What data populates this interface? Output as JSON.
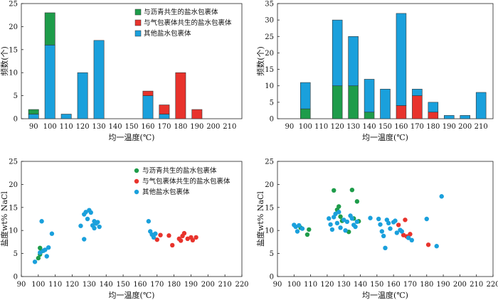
{
  "legend_labels": {
    "bitumen": "与沥青共生的盐水包裹体",
    "gas": "与气包裹体共生的盐水包裹体",
    "other": "其他盐水包裹体"
  },
  "colors": {
    "bitumen": "#1e9c4a",
    "gas": "#e8332c",
    "other": "#1aa0dc"
  },
  "chart_data": [
    {
      "type": "bar",
      "stacked": true,
      "xlabel": "均一温度(℃)",
      "ylabel": "频数(个)",
      "ylim": [
        0,
        25
      ],
      "yticks": [
        0,
        5,
        10,
        15,
        20,
        25
      ],
      "categories": [
        90,
        100,
        110,
        120,
        130,
        140,
        150,
        160,
        170,
        180,
        190,
        200,
        210
      ],
      "series": [
        {
          "name": "其他盐水包裹体",
          "key": "other",
          "values": [
            1,
            16,
            1,
            10,
            17,
            0,
            0,
            5,
            1,
            0,
            0,
            0,
            0
          ]
        },
        {
          "name": "与沥青共生的盐水包裹体",
          "key": "bitumen",
          "values": [
            1,
            7,
            0,
            0,
            0,
            0,
            0,
            0,
            0,
            0,
            0,
            0,
            0
          ]
        },
        {
          "name": "与气包裹体共生的盐水包裹体",
          "key": "gas",
          "values": [
            0,
            0,
            0,
            0,
            0,
            0,
            0,
            1,
            2,
            10,
            2,
            0,
            0
          ]
        }
      ],
      "legend": "top-right"
    },
    {
      "type": "bar",
      "stacked": true,
      "xlabel": "均一温度(℃)",
      "ylabel": "频数(个)",
      "ylim": [
        0,
        35
      ],
      "yticks": [
        0,
        5,
        10,
        15,
        20,
        25,
        30,
        35
      ],
      "categories": [
        90,
        100,
        110,
        120,
        130,
        140,
        150,
        160,
        170,
        180,
        190,
        200,
        210
      ],
      "series": [
        {
          "name": "与沥青共生的盐水包裹体",
          "key": "bitumen",
          "values": [
            0,
            3,
            0,
            10,
            10,
            2,
            0,
            0,
            0,
            0,
            0,
            0,
            0
          ]
        },
        {
          "name": "与气包裹体共生的盐水包裹体",
          "key": "gas",
          "values": [
            0,
            0,
            0,
            0,
            0,
            0,
            0,
            4,
            7,
            2,
            0,
            0,
            0
          ]
        },
        {
          "name": "其他盐水包裹体",
          "key": "other",
          "values": [
            0,
            8,
            0,
            20,
            15,
            10,
            9,
            28,
            2,
            3,
            1,
            1,
            8
          ]
        }
      ]
    },
    {
      "type": "scatter",
      "xlabel": "均一温度(℃)",
      "ylabel": "盐度wt% NaCl",
      "xlim": [
        90,
        220
      ],
      "ylim": [
        0,
        25
      ],
      "xticks": [
        90,
        100,
        110,
        120,
        130,
        140,
        150,
        160,
        170,
        180,
        190,
        200,
        210,
        220
      ],
      "yticks": [
        0,
        5,
        10,
        15,
        20,
        25
      ],
      "legend": "top-right",
      "series": [
        {
          "name": "与沥青共生的盐水包裹体",
          "key": "bitumen",
          "points": [
            [
              101,
              6.2
            ],
            [
              100,
              4.0
            ],
            [
              102,
              5.5
            ],
            [
              101,
              4.8
            ]
          ]
        },
        {
          "name": "与气包裹体共生的盐水包裹体",
          "key": "gas",
          "points": [
            [
              170,
              8.0
            ],
            [
              177,
              8.9
            ],
            [
              179,
              6.8
            ],
            [
              183,
              8.2
            ],
            [
              185,
              8.8
            ],
            [
              186,
              9.4
            ],
            [
              188,
              8.2
            ],
            [
              190,
              8.5
            ],
            [
              191,
              7.9
            ],
            [
              193,
              8.5
            ],
            [
              184,
              7.8
            ],
            [
              172,
              9.0
            ]
          ]
        },
        {
          "name": "其他盐水包裹体",
          "key": "other",
          "points": [
            [
              98,
              3.2
            ],
            [
              101,
              5.2
            ],
            [
              102,
              12.0
            ],
            [
              103,
              5.6
            ],
            [
              104,
              5.8
            ],
            [
              105,
              4.4
            ],
            [
              106,
              6.3
            ],
            [
              108,
              9.3
            ],
            [
              125,
              11.0
            ],
            [
              127,
              8.1
            ],
            [
              127,
              13.5
            ],
            [
              128,
              14.0
            ],
            [
              129,
              12.5
            ],
            [
              130,
              14.4
            ],
            [
              131,
              13.9
            ],
            [
              132,
              11.1
            ],
            [
              133,
              12.0
            ],
            [
              133,
              10.5
            ],
            [
              134,
              11.5
            ],
            [
              135,
              11.8
            ],
            [
              136,
              10.8
            ],
            [
              165,
              12.0
            ],
            [
              166,
              9.8
            ],
            [
              167,
              9.1
            ],
            [
              168,
              8.5
            ],
            [
              169,
              9.3
            ]
          ]
        }
      ]
    },
    {
      "type": "scatter",
      "xlabel": "均一温度(℃)",
      "ylabel": "盐度wt% NaCl",
      "xlim": [
        90,
        220
      ],
      "ylim": [
        0,
        25
      ],
      "xticks": [
        90,
        100,
        110,
        120,
        130,
        140,
        150,
        160,
        170,
        180,
        190,
        200,
        210,
        220
      ],
      "yticks": [
        0,
        5,
        10,
        15,
        20,
        25
      ],
      "series": [
        {
          "name": "与沥青共生的盐水包裹体",
          "key": "bitumen",
          "points": [
            [
              104,
              10.6
            ],
            [
              108,
              9.1
            ],
            [
              109,
              10.2
            ],
            [
              124,
              18.7
            ],
            [
              126,
              14.5
            ],
            [
              127,
              15.2
            ],
            [
              128,
              13.0
            ],
            [
              129,
              12.1
            ],
            [
              133,
              9.7
            ],
            [
              135,
              18.8
            ],
            [
              136,
              12.6
            ],
            [
              138,
              16.3
            ],
            [
              139,
              12.0
            ]
          ]
        },
        {
          "name": "与气包裹体共生的盐水包裹体",
          "key": "gas",
          "points": [
            [
              163,
              11.2
            ],
            [
              166,
              9.0
            ],
            [
              167,
              12.3
            ],
            [
              168,
              8.7
            ],
            [
              170,
              9.2
            ],
            [
              181,
              6.9
            ]
          ]
        },
        {
          "name": "其他盐水包裹体",
          "key": "other",
          "points": [
            [
              100,
              11.2
            ],
            [
              101,
              10.8
            ],
            [
              102,
              9.8
            ],
            [
              103,
              11.1
            ],
            [
              105,
              10.4
            ],
            [
              121,
              12.6
            ],
            [
              122,
              11.3
            ],
            [
              123,
              10.2
            ],
            [
              124,
              12.9
            ],
            [
              125,
              13.6
            ],
            [
              126,
              11.6
            ],
            [
              127,
              14.0
            ],
            [
              128,
              10.6
            ],
            [
              130,
              12.3
            ],
            [
              131,
              10.0
            ],
            [
              132,
              11.9
            ],
            [
              134,
              13.2
            ],
            [
              135,
              12.6
            ],
            [
              136,
              11.2
            ],
            [
              137,
              10.8
            ],
            [
              138,
              11.9
            ],
            [
              146,
              12.7
            ],
            [
              151,
              12.5
            ],
            [
              152,
              11.3
            ],
            [
              153,
              9.8
            ],
            [
              154,
              8.8
            ],
            [
              155,
              6.2
            ],
            [
              156,
              12.3
            ],
            [
              157,
              11.6
            ],
            [
              158,
              10.4
            ],
            [
              160,
              11.8
            ],
            [
              161,
              12.1
            ],
            [
              162,
              9.5
            ],
            [
              164,
              10.1
            ],
            [
              165,
              9.8
            ],
            [
              169,
              8.4
            ],
            [
              171,
              7.9
            ],
            [
              180,
              12.5
            ],
            [
              186,
              6.6
            ],
            [
              189,
              17.4
            ]
          ]
        }
      ]
    }
  ]
}
